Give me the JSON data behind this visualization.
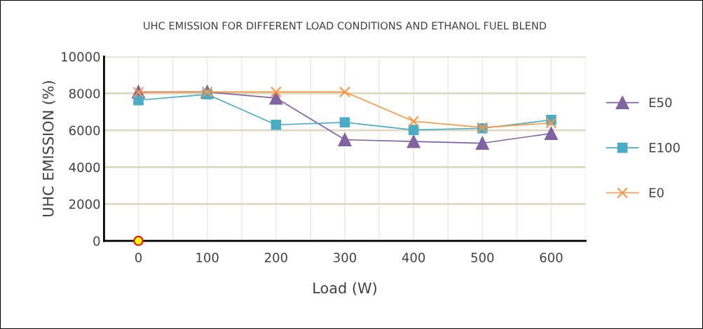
{
  "chart_data": {
    "type": "line",
    "title": "UHC EMISSION FOR DIFFERENT LOAD CONDITIONS AND ETHANOL FUEL BLEND",
    "xlabel": "Load (W)",
    "ylabel": "UHC EMISSION (%)",
    "categories": [
      "0",
      "100",
      "200",
      "300",
      "400",
      "500",
      "600"
    ],
    "ylim": [
      0,
      10000
    ],
    "yticks": [
      0,
      2000,
      4000,
      6000,
      8000,
      10000
    ],
    "grid": true,
    "legend": "right",
    "series": [
      {
        "name": "E50",
        "color": "#8064a2",
        "marker": "triangle",
        "values": [
          8080,
          8080,
          7750,
          5490,
          5390,
          5300,
          5830
        ]
      },
      {
        "name": "E100",
        "color": "#4bacc6",
        "marker": "square",
        "values": [
          7630,
          7950,
          6300,
          6430,
          6020,
          6110,
          6560
        ]
      },
      {
        "name": "E0",
        "color": "#f79646",
        "marker": "cross",
        "values": [
          8060,
          8080,
          8080,
          8080,
          6490,
          6150,
          6400
        ]
      },
      {
        "type": "scatter",
        "color": "#ffff00",
        "marker": "circle",
        "values": [
          0,
          null,
          null,
          null,
          null,
          null,
          null
        ]
      }
    ]
  }
}
